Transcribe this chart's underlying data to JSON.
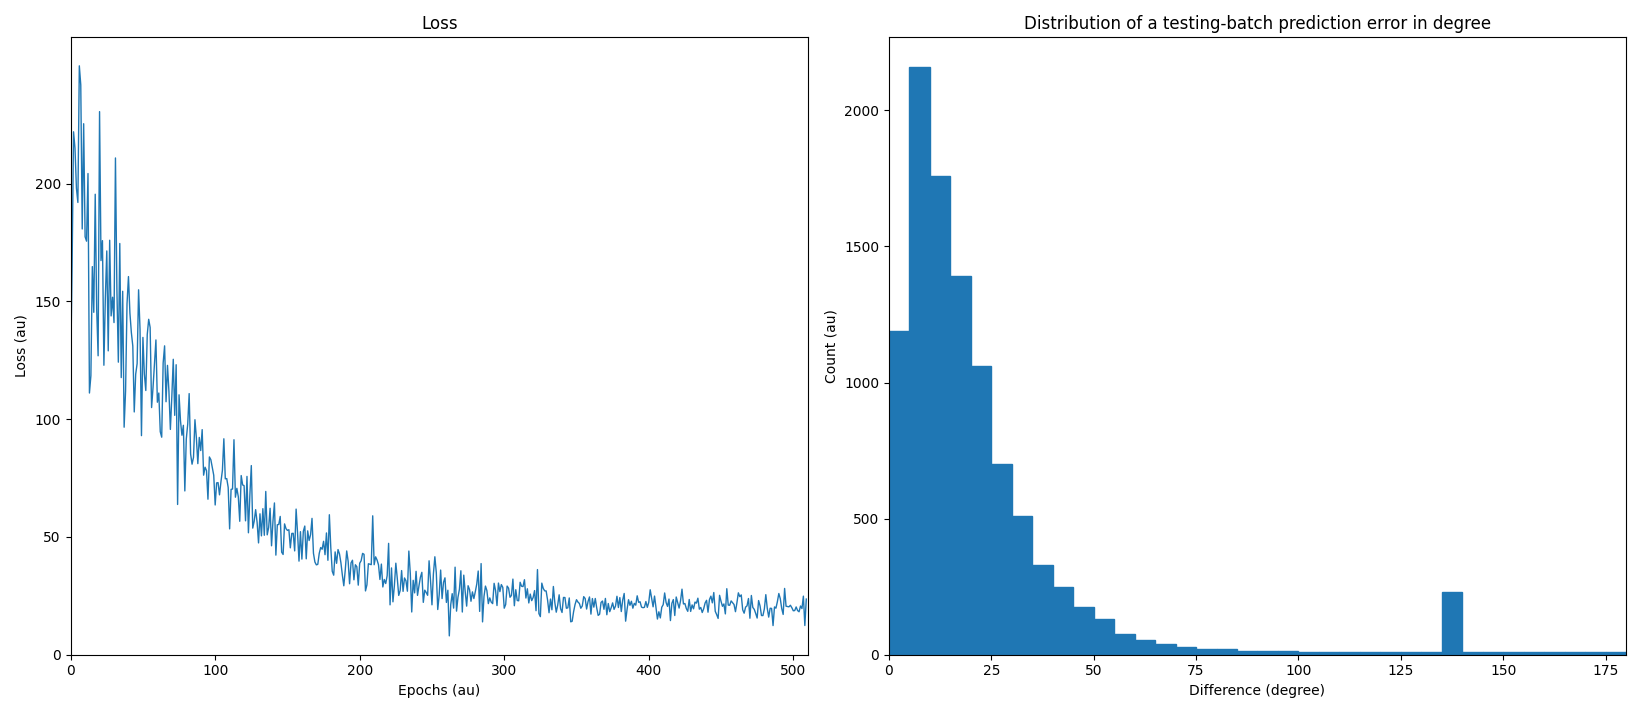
{
  "loss_title": "Loss",
  "loss_xlabel": "Epochs (au)",
  "loss_ylabel": "Loss (au)",
  "loss_n_epochs": 510,
  "loss_seed": 42,
  "loss_peak": 222,
  "loss_final": 20,
  "loss_color": "#1f77b4",
  "loss_linewidth": 1.0,
  "hist_title": "Distribution of a testing-batch prediction error in degree",
  "hist_xlabel": "Difference (degree)",
  "hist_ylabel": "Count (au)",
  "hist_color": "#1f77b4",
  "hist_bin_edges": [
    0,
    5,
    10,
    15,
    20,
    25,
    30,
    35,
    40,
    45,
    50,
    55,
    60,
    65,
    70,
    75,
    80,
    85,
    90,
    95,
    100,
    105,
    110,
    115,
    120,
    125,
    130,
    135,
    140,
    145,
    150,
    155,
    160,
    165,
    170,
    175,
    180
  ],
  "hist_counts": [
    1190,
    2160,
    1760,
    1390,
    1060,
    700,
    510,
    330,
    250,
    175,
    130,
    75,
    55,
    40,
    30,
    20,
    20,
    15,
    15,
    15,
    10,
    10,
    10,
    10,
    10,
    10,
    10,
    230,
    10,
    10,
    10,
    10,
    10,
    10,
    10,
    10
  ],
  "fig_width": 16.41,
  "fig_height": 7.13,
  "fig_dpi": 100
}
